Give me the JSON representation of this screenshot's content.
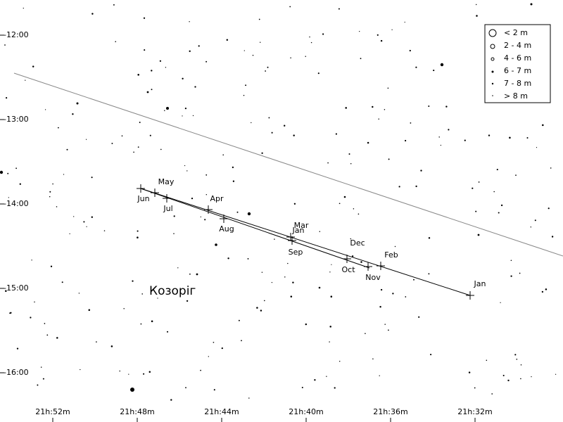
{
  "dec_labels": [
    "-12:00",
    "-13:00",
    "-14:00",
    "-15:00",
    "-16:00"
  ],
  "ra_labels": [
    "21h:52m",
    "21h:48m",
    "21h:44m",
    "21h:40m",
    "21h:36m",
    "21h:32m"
  ],
  "constellation": "Козоріг",
  "legend": [
    "< 2 m",
    "2 - 4 m",
    "4 - 6 m",
    "6 - 7 m",
    "7 - 8 m",
    "> 8 m"
  ],
  "path_labels": [
    "May",
    "Jun",
    "Jul",
    "Apr",
    "Aug",
    "Mar",
    "Jan",
    "Sep",
    "Dec",
    "Oct",
    "Nov",
    "Feb",
    "Jan"
  ]
}
